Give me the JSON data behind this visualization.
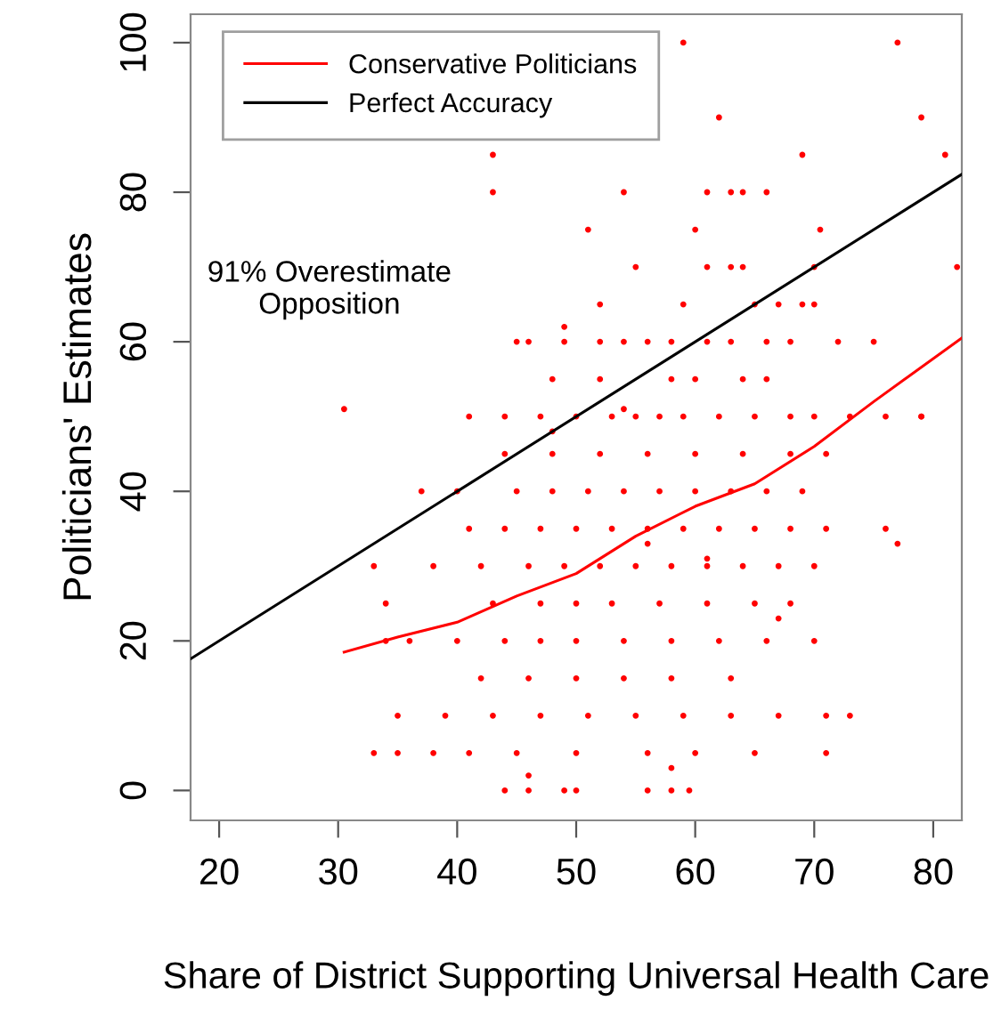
{
  "chart_data": {
    "type": "scatter",
    "xlabel": "Share of District Supporting Universal Health Care",
    "ylabel": "Politicians' Estimates",
    "xlim": [
      17.6,
      82.4
    ],
    "ylim": [
      -4,
      103.8
    ],
    "xticks": [
      20,
      30,
      40,
      50,
      60,
      70,
      80
    ],
    "yticks": [
      0,
      20,
      40,
      60,
      80,
      100
    ],
    "grid": false,
    "legend": "top left",
    "annotations": [
      "91% Overestimate\nOpposition"
    ],
    "series": [
      {
        "color": "#ff0000",
        "marker": "circle",
        "x": [
          59,
          77,
          62,
          79,
          43,
          69,
          81,
          43,
          54,
          61,
          63,
          64,
          66,
          51,
          60,
          70.5,
          55,
          61,
          63,
          64,
          70,
          82,
          52,
          59,
          65,
          67,
          69,
          70,
          45,
          46,
          49,
          52,
          54,
          56,
          58,
          61,
          63,
          66,
          68,
          72,
          75,
          48,
          52,
          58,
          60,
          64,
          66,
          30.5,
          41,
          44,
          47,
          50,
          53,
          55,
          57,
          59,
          62,
          65,
          68,
          70,
          73,
          76,
          79,
          44,
          48,
          52,
          56,
          60,
          64,
          68,
          71,
          37,
          40,
          45,
          48,
          51,
          54,
          57,
          60,
          63,
          66,
          69,
          41,
          44,
          47,
          50,
          53,
          56,
          59,
          62,
          65,
          68,
          71,
          76,
          33,
          38,
          42,
          46,
          49,
          52,
          55,
          58,
          61,
          64,
          67,
          70,
          34,
          43,
          47,
          50,
          53,
          57,
          61,
          65,
          68,
          34,
          36,
          40,
          44,
          47,
          50,
          54,
          58,
          62,
          66,
          70,
          42,
          46,
          50,
          54,
          58,
          63,
          35,
          39,
          43,
          47,
          51,
          55,
          59,
          63,
          67,
          71,
          73,
          33,
          35,
          38,
          41,
          45,
          50,
          56,
          60,
          65,
          71,
          44,
          46,
          49,
          50,
          56,
          58,
          59.5,
          49,
          54,
          48,
          56,
          61,
          58,
          67,
          77,
          79,
          46
        ],
        "values": [
          100,
          100,
          90,
          90,
          85,
          85,
          85,
          80,
          80,
          80,
          80,
          80,
          80,
          75,
          75,
          75,
          70,
          70,
          70,
          70,
          70,
          70,
          65,
          65,
          65,
          65,
          65,
          65,
          60,
          60,
          60,
          60,
          60,
          60,
          60,
          60,
          60,
          60,
          60,
          60,
          60,
          55,
          55,
          55,
          55,
          55,
          55,
          51,
          50,
          50,
          50,
          50,
          50,
          50,
          50,
          50,
          50,
          50,
          50,
          50,
          50,
          50,
          50,
          45,
          45,
          45,
          45,
          45,
          45,
          45,
          45,
          40,
          40,
          40,
          40,
          40,
          40,
          40,
          40,
          40,
          40,
          40,
          35,
          35,
          35,
          35,
          35,
          35,
          35,
          35,
          35,
          35,
          35,
          35,
          30,
          30,
          30,
          30,
          30,
          30,
          30,
          30,
          30,
          30,
          30,
          30,
          25,
          25,
          25,
          25,
          25,
          25,
          25,
          25,
          25,
          20,
          20,
          20,
          20,
          20,
          20,
          20,
          20,
          20,
          20,
          20,
          15,
          15,
          15,
          15,
          15,
          15,
          10,
          10,
          10,
          10,
          10,
          10,
          10,
          10,
          10,
          10,
          10,
          5,
          5,
          5,
          5,
          5,
          5,
          5,
          5,
          5,
          5,
          0,
          0,
          0,
          0,
          0,
          0,
          0,
          62,
          51,
          48,
          33,
          31,
          3,
          23,
          33,
          50,
          2
        ]
      },
      {
        "type": "line",
        "name": "Conservative Politicians",
        "color": "#ff0000",
        "marker": "none",
        "line_style": "solid",
        "x": [
          30.5,
          35,
          40,
          45,
          50,
          55,
          60,
          65,
          70,
          75,
          82.4
        ],
        "values": [
          18.5,
          20.5,
          22.5,
          26,
          29,
          34,
          38,
          41,
          46,
          52,
          60.5
        ]
      },
      {
        "type": "line",
        "name": "Perfect Accuracy",
        "color": "#000000",
        "marker": "none",
        "line_style": "solid",
        "x": [
          17.6,
          82.4
        ],
        "values": [
          17.6,
          82.4
        ]
      }
    ]
  }
}
